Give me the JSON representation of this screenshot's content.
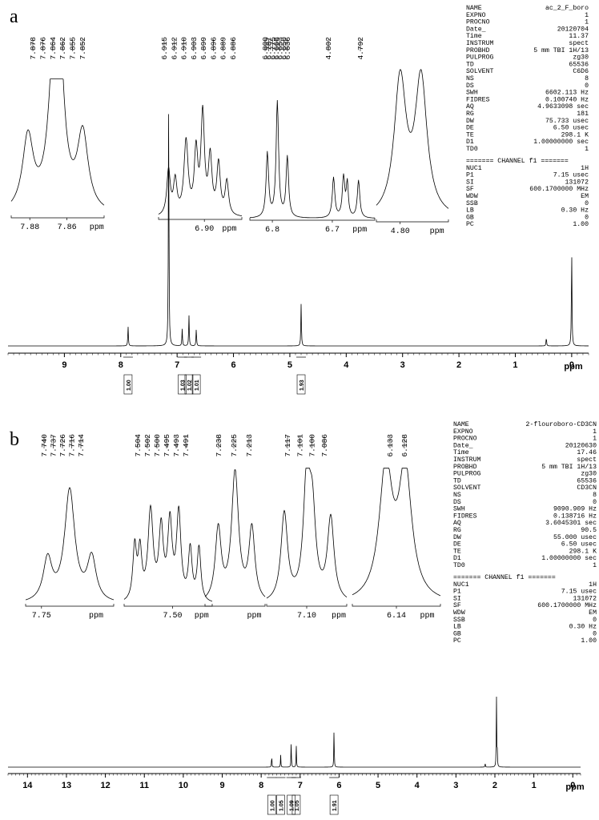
{
  "panels": [
    {
      "label": "a",
      "params": [
        [
          "NAME",
          "ac_2_F_boro"
        ],
        [
          "EXPNO",
          "1"
        ],
        [
          "PROCNO",
          "1"
        ],
        [
          "Date_",
          "20120704"
        ],
        [
          "Time",
          "11.37"
        ],
        [
          "INSTRUM",
          "spect"
        ],
        [
          "PROBHD",
          "5 mm TBI 1H/13"
        ],
        [
          "PULPROG",
          "zg30"
        ],
        [
          "TD",
          "65536"
        ],
        [
          "SOLVENT",
          "C6D6"
        ],
        [
          "NS",
          "8"
        ],
        [
          "DS",
          "0"
        ],
        [
          "SWH",
          "6602.113 Hz"
        ],
        [
          "FIDRES",
          "0.100740 Hz"
        ],
        [
          "AQ",
          "4.9633098 sec"
        ],
        [
          "RG",
          "181"
        ],
        [
          "DW",
          "75.733 usec"
        ],
        [
          "DE",
          "6.50 usec"
        ],
        [
          "TE",
          "298.1 K"
        ],
        [
          "D1",
          "1.00000000 sec"
        ],
        [
          "TD0",
          "1"
        ]
      ],
      "channel_title": "======= CHANNEL f1 =======",
      "channel_params": [
        [
          "NUC1",
          "1H"
        ],
        [
          "P1",
          "7.15 usec"
        ],
        [
          "SI",
          "131072"
        ],
        [
          "SF",
          "600.1700000 MHz"
        ],
        [
          "WDW",
          "EM"
        ],
        [
          "SSB",
          "0"
        ],
        [
          "LB",
          "0.30 Hz"
        ],
        [
          "GB",
          "0"
        ],
        [
          "PC",
          "1.00"
        ]
      ],
      "axis_unit": "ppm",
      "inset_unit": "ppm"
    },
    {
      "label": "b",
      "params": [
        [
          "NAME",
          "2-flouroboro-CD3CN"
        ],
        [
          "EXPNO",
          "1"
        ],
        [
          "PROCNO",
          "1"
        ],
        [
          "Date_",
          "20120630"
        ],
        [
          "Time",
          "17.46"
        ],
        [
          "INSTRUM",
          "spect"
        ],
        [
          "PROBHD",
          "5 mm TBI 1H/13"
        ],
        [
          "PULPROG",
          "zg30"
        ],
        [
          "TD",
          "65536"
        ],
        [
          "SOLVENT",
          "CD3CN"
        ],
        [
          "NS",
          "8"
        ],
        [
          "DS",
          "0"
        ],
        [
          "SWH",
          "9090.909 Hz"
        ],
        [
          "FIDRES",
          "0.138716 Hz"
        ],
        [
          "AQ",
          "3.6045301 sec"
        ],
        [
          "RG",
          "90.5"
        ],
        [
          "DW",
          "55.000 usec"
        ],
        [
          "DE",
          "6.50 usec"
        ],
        [
          "TE",
          "298.1 K"
        ],
        [
          "D1",
          "1.00000000 sec"
        ],
        [
          "TD0",
          "1"
        ]
      ],
      "channel_title": "======= CHANNEL f1 =======",
      "channel_params": [
        [
          "NUC1",
          "1H"
        ],
        [
          "P1",
          "7.15 usec"
        ],
        [
          "SI",
          "131072"
        ],
        [
          "SF",
          "600.1700000 MHz"
        ],
        [
          "WDW",
          "EM"
        ],
        [
          "SSB",
          "0"
        ],
        [
          "LB",
          "0.30 Hz"
        ],
        [
          "GB",
          "0"
        ],
        [
          "PC",
          "1.00"
        ]
      ],
      "axis_unit": "ppm",
      "inset_unit": "ppm"
    }
  ],
  "chart_data": [
    {
      "type": "line",
      "panel": "a",
      "xlabel": "ppm",
      "xlim": [
        10,
        -0.3
      ],
      "x_ticks": [
        "9",
        "8",
        "7",
        "6",
        "5",
        "4",
        "3",
        "2",
        "1",
        "0"
      ],
      "peaks": [
        {
          "ppm": 7.87,
          "height": 0.07
        },
        {
          "ppm": 7.15,
          "height": 0.88
        },
        {
          "ppm": 6.91,
          "height": 0.06
        },
        {
          "ppm": 6.79,
          "height": 0.11
        },
        {
          "ppm": 6.66,
          "height": 0.06
        },
        {
          "ppm": 4.8,
          "height": 0.15
        },
        {
          "ppm": 0.45,
          "height": 0.03
        },
        {
          "ppm": 0.0,
          "height": 0.34
        }
      ],
      "integrals": [
        {
          "ppm": 7.87,
          "label": "1.00"
        },
        {
          "ppm": 6.91,
          "label": "1.03"
        },
        {
          "ppm": 6.79,
          "label": "1.02"
        },
        {
          "ppm": 6.66,
          "label": "1.01"
        },
        {
          "ppm": 4.8,
          "label": "1.93"
        }
      ],
      "insets": [
        {
          "peaks": [
            "7.878",
            "7.876",
            "7.864",
            "7.862",
            "7.855",
            "7.852"
          ],
          "ticks": [
            "7.88",
            "7.86"
          ],
          "unit": "ppm"
        },
        {
          "peaks": [
            "6.915",
            "6.912",
            "6.910",
            "6.903",
            "6.899",
            "6.896",
            "6.889",
            "6.886"
          ],
          "ticks": [
            "6.90"
          ],
          "unit": "ppm"
        },
        {
          "peaks": [
            "6.800",
            "6.787",
            "6.775",
            "6.668",
            "6.653",
            "6.650",
            "6.636"
          ],
          "ticks": [
            "6.8",
            "6.7"
          ],
          "unit": "ppm"
        },
        {
          "peaks": [
            "4.802",
            "4.792"
          ],
          "ticks": [
            "4.80"
          ],
          "unit": "ppm"
        }
      ]
    },
    {
      "type": "line",
      "panel": "b",
      "xlabel": "ppm",
      "xlim": [
        14.5,
        -0.2
      ],
      "x_ticks": [
        "14",
        "13",
        "12",
        "11",
        "10",
        "9",
        "8",
        "7",
        "6",
        "5",
        "4",
        "3",
        "2",
        "1",
        "0"
      ],
      "peaks": [
        {
          "ppm": 7.73,
          "height": 0.18
        },
        {
          "ppm": 7.5,
          "height": 0.17
        },
        {
          "ppm": 7.23,
          "height": 0.36
        },
        {
          "ppm": 7.1,
          "height": 0.31
        },
        {
          "ppm": 6.13,
          "height": 0.55
        },
        {
          "ppm": 2.25,
          "height": 0.06
        },
        {
          "ppm": 1.96,
          "height": 1.0
        },
        {
          "ppm": 1.94,
          "height": 0.22
        }
      ],
      "integrals": [
        {
          "ppm": 7.73,
          "label": "1.00"
        },
        {
          "ppm": 7.5,
          "label": "1.05"
        },
        {
          "ppm": 7.23,
          "label": "1.09"
        },
        {
          "ppm": 7.1,
          "label": "1.05"
        },
        {
          "ppm": 6.13,
          "label": "1.91"
        }
      ],
      "insets": [
        {
          "peaks": [
            "7.740",
            "7.737",
            "7.726",
            "7.716",
            "7.714"
          ],
          "ticks": [
            "7.75"
          ],
          "unit": "ppm"
        },
        {
          "peaks": [
            "7.504",
            "7.502",
            "7.500",
            "7.495",
            "7.493",
            "7.491"
          ],
          "ticks": [
            "7.50"
          ],
          "unit": "ppm"
        },
        {
          "peaks": [
            "7.238",
            "7.225",
            "7.213"
          ],
          "ticks": [],
          "unit": "ppm"
        },
        {
          "peaks": [
            "7.117",
            "7.101",
            "7.100",
            "7.086"
          ],
          "ticks": [
            "7.10"
          ],
          "unit": "ppm"
        },
        {
          "peaks": [
            "6.133",
            "6.128"
          ],
          "ticks": [
            "6.14"
          ],
          "unit": "ppm"
        }
      ]
    }
  ]
}
